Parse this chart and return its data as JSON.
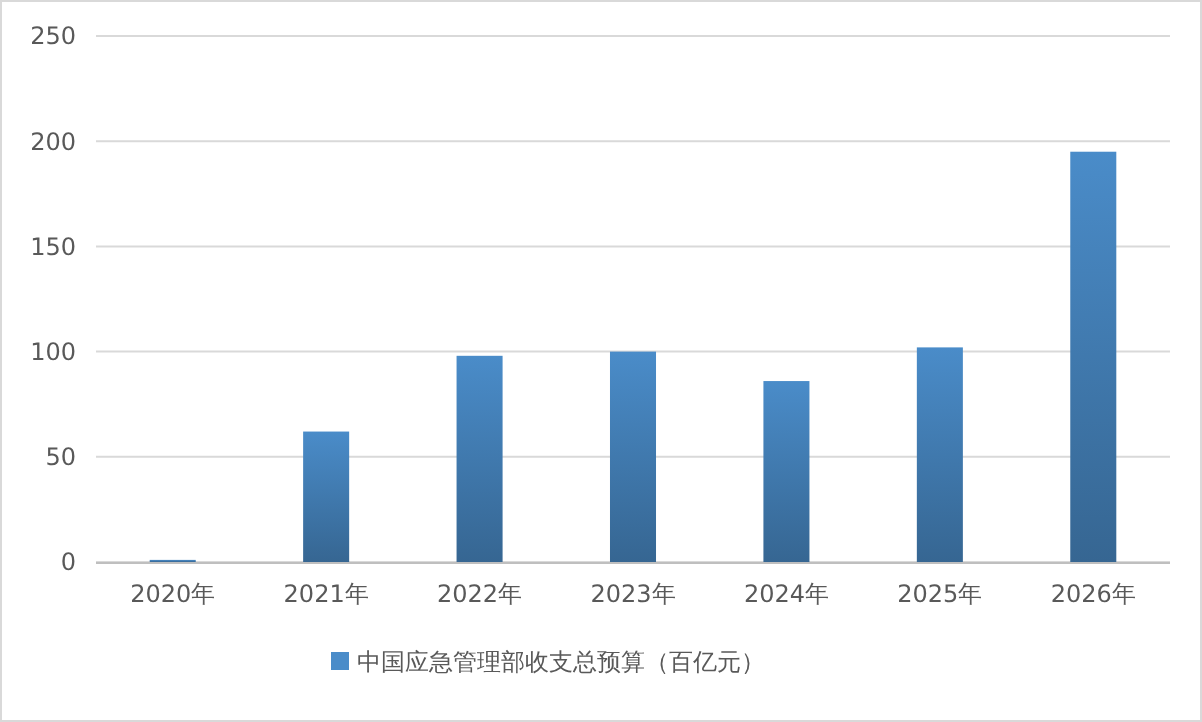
{
  "chart_data": {
    "type": "bar",
    "categories": [
      "2020年",
      "2021年",
      "2022年",
      "2023年",
      "2024年",
      "2025年",
      "2026年"
    ],
    "series": [
      {
        "name": "中国应急管理部收支总预算（百亿元）",
        "color": "#4a8cc9",
        "values": [
          1,
          62,
          98,
          100,
          86,
          102,
          195
        ]
      }
    ],
    "ylim": [
      0,
      250
    ],
    "yticks": [
      0,
      50,
      100,
      150,
      200,
      250
    ],
    "grid": "y",
    "legend": "bottom"
  }
}
